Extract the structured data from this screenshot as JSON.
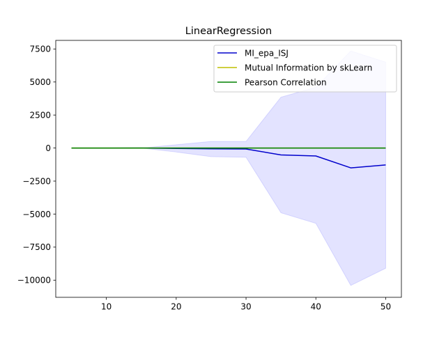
{
  "chart_data": {
    "type": "line",
    "title": "LinearRegression",
    "xlabel": "",
    "ylabel": "",
    "xlim": [
      2.75,
      52.25
    ],
    "ylim": [
      -11300,
      8150
    ],
    "xticks": [
      10,
      20,
      30,
      40,
      50
    ],
    "xtick_labels": [
      "10",
      "20",
      "30",
      "40",
      "50"
    ],
    "yticks": [
      -10000,
      -7500,
      -5000,
      -2500,
      0,
      2500,
      5000,
      7500
    ],
    "ytick_labels": [
      "−10000",
      "−7500",
      "−5000",
      "−2500",
      "0",
      "2500",
      "5000",
      "7500"
    ],
    "x": [
      5,
      10,
      15,
      20,
      25,
      30,
      35,
      40,
      45,
      50
    ],
    "series": [
      {
        "name": "MI_epa_ISJ",
        "color": "#0000cc",
        "values": [
          -10,
          -5,
          0,
          -30,
          -60,
          -70,
          -520,
          -600,
          -1500,
          -1280
        ],
        "band_lower": [
          -10,
          -5,
          0,
          -300,
          -650,
          -700,
          -4900,
          -5700,
          -10400,
          -9100
        ],
        "band_upper": [
          -10,
          -5,
          0,
          250,
          500,
          500,
          3850,
          4600,
          7350,
          6500
        ],
        "band_color": "#0000ff"
      },
      {
        "name": "Mutual Information by skLearn",
        "color": "#bfbf00",
        "values": [
          0,
          0,
          0,
          0,
          0,
          0,
          0,
          0,
          0,
          0
        ]
      },
      {
        "name": "Pearson Correlation",
        "color": "#008000",
        "values": [
          0,
          0,
          0,
          0,
          0,
          0,
          0,
          0,
          0,
          0
        ]
      }
    ],
    "legend_position": "top-right",
    "grid": false
  }
}
